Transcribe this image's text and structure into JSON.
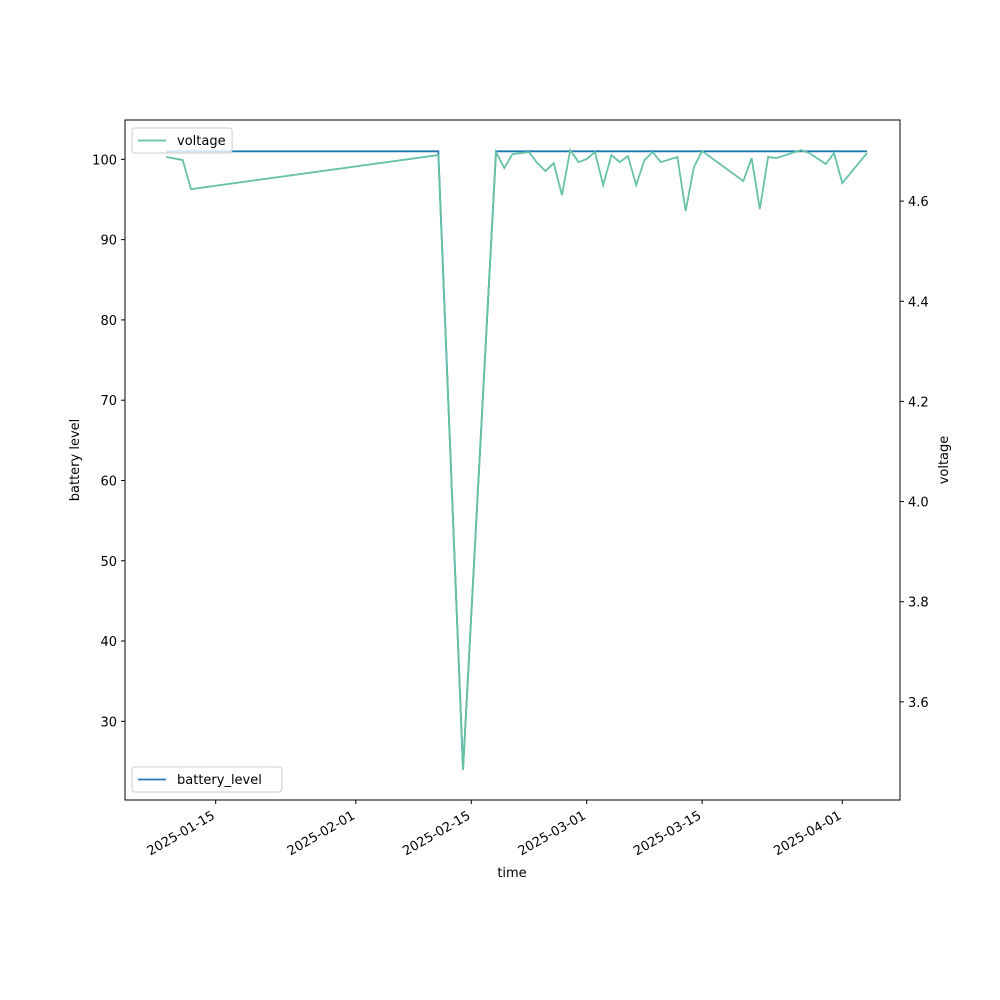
{
  "chart_data": {
    "type": "line",
    "xlabel": "time",
    "ylabel": "battery level",
    "y2label": "voltage",
    "xlim": [
      "2025-01-04",
      "2025-04-08"
    ],
    "xticks": [
      "2025-01-15",
      "2025-02-01",
      "2025-02-15",
      "2025-03-01",
      "2025-03-15",
      "2025-04-01"
    ],
    "ylim": [
      20.2,
      104.9
    ],
    "yticks": [
      30,
      40,
      50,
      60,
      70,
      80,
      90,
      100
    ],
    "y2lim": [
      3.404,
      4.762
    ],
    "y2ticks": [
      3.6,
      3.8,
      {
        "value": 4,
        "label": "4.0"
      },
      4.2,
      4.4,
      4.6
    ],
    "series": [
      {
        "name": "battery_level",
        "color": "#1f77b4",
        "legend": "lower left",
        "x": [
          "2025-01-09",
          "2025-02-11",
          "2025-02-14",
          "2025-02-18",
          "2025-04-04"
        ],
        "values": [
          101,
          101,
          24,
          101,
          101
        ]
      },
      {
        "name": "voltage",
        "color": "#66c2a5",
        "legend": "upper left",
        "axis": "y2",
        "x": [
          "2025-01-09",
          "2025-01-11",
          "2025-01-12",
          "2025-02-11",
          "2025-02-14",
          "2025-02-18",
          "2025-02-19",
          "2025-02-20",
          "2025-02-22",
          "2025-02-23",
          "2025-02-24",
          "2025-02-25",
          "2025-02-26",
          "2025-02-27",
          "2025-02-28",
          "2025-03-01",
          "2025-03-02",
          "2025-03-03",
          "2025-03-04",
          "2025-03-05",
          "2025-03-06",
          "2025-03-07",
          "2025-03-08",
          "2025-03-09",
          "2025-03-10",
          "2025-03-12",
          "2025-03-13",
          "2025-03-14",
          "2025-03-15",
          "2025-03-20",
          "2025-03-21",
          "2025-03-22",
          "2025-03-23",
          "2025-03-24",
          "2025-03-27",
          "2025-03-28",
          "2025-03-30",
          "2025-03-31",
          "2025-04-01",
          "2025-04-04"
        ],
        "values": [
          4.688,
          4.682,
          4.624,
          4.692,
          3.466,
          4.698,
          4.666,
          4.694,
          4.698,
          4.676,
          4.66,
          4.676,
          4.612,
          4.702,
          4.678,
          4.684,
          4.698,
          4.632,
          4.692,
          4.678,
          4.69,
          4.632,
          4.682,
          4.698,
          4.678,
          4.688,
          4.58,
          4.668,
          4.7,
          4.64,
          4.686,
          4.584,
          4.688,
          4.686,
          4.702,
          4.696,
          4.674,
          4.696,
          4.636,
          4.696
        ]
      }
    ]
  }
}
